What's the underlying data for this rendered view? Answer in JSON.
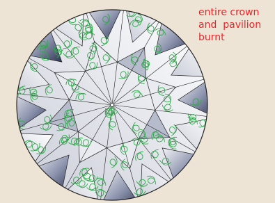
{
  "annotation": {
    "lines": [
      "entire crown",
      "and  pavilion",
      "burnt"
    ]
  }
}
